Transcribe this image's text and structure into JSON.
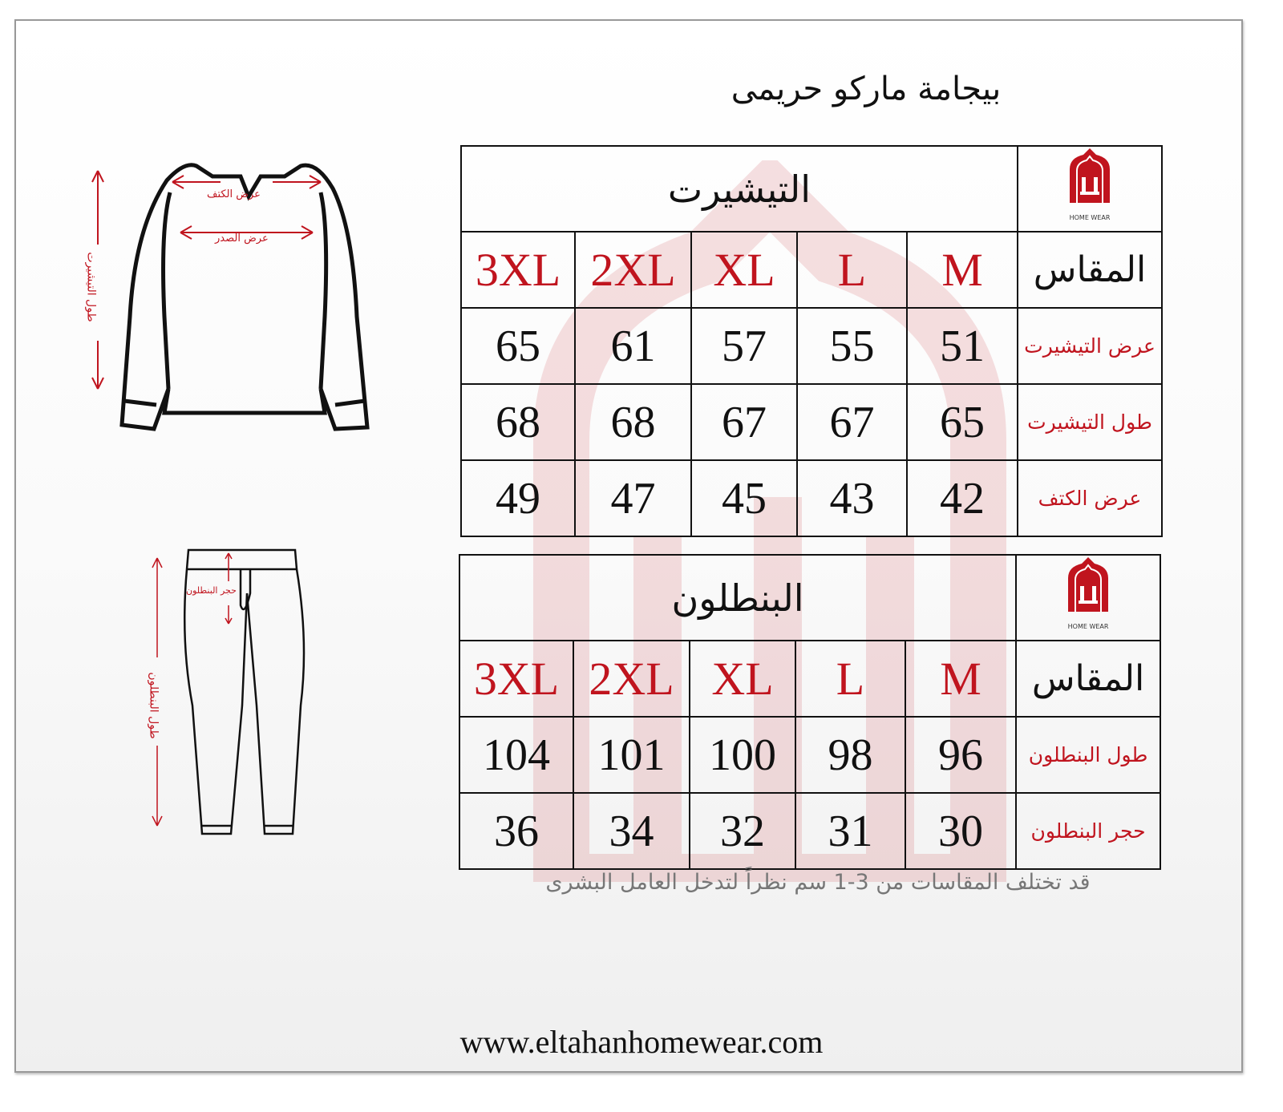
{
  "title": "بيجامة ماركو حريمى",
  "brand": {
    "logo_text": "HOME WEAR",
    "accent": "#c0141e"
  },
  "shirt_table": {
    "section": "التيشيرت",
    "size_label": "المقاس",
    "sizes": [
      "3XL",
      "2XL",
      "XL",
      "L",
      "M"
    ],
    "rows": [
      {
        "label": "عرض التيشيرت",
        "values": [
          "65",
          "61",
          "57",
          "55",
          "51"
        ]
      },
      {
        "label": "طول التيشيرت",
        "values": [
          "68",
          "68",
          "67",
          "67",
          "65"
        ]
      },
      {
        "label": "عرض الكتف",
        "values": [
          "49",
          "47",
          "45",
          "43",
          "42"
        ]
      }
    ]
  },
  "pants_table": {
    "section": "البنطلون",
    "size_label": "المقاس",
    "sizes": [
      "3XL",
      "2XL",
      "XL",
      "L",
      "M"
    ],
    "rows": [
      {
        "label": "طول البنطلون",
        "values": [
          "104",
          "101",
          "100",
          "98",
          "96"
        ]
      },
      {
        "label": "حجر البنطلون",
        "values": [
          "36",
          "34",
          "32",
          "31",
          "30"
        ]
      }
    ]
  },
  "shirt_diagram": {
    "shoulder": "عرض الكتف",
    "chest": "عرض الصدر",
    "length": "طول التيشيرت"
  },
  "pants_diagram": {
    "rise": "حجر البنطلون",
    "length": "طول البنطلون"
  },
  "note": "قد تختلف المقاسات من 3-1 سم نظراً لتدخل العامل البشرى",
  "website": "www.eltahanhomewear.com"
}
